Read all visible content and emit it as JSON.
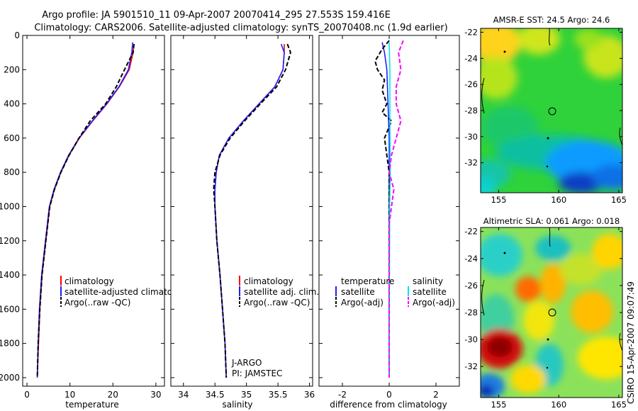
{
  "header": {
    "line1": "Argo profile: JA 5901510_11 09-Apr-2007 20070414_295 27.553S 159.416E",
    "line2": "Climatology: CARS2006. Satellite-adjusted climatology: synTS_20070408.nc (1.9d earlier)"
  },
  "colors": {
    "climatology": "#ff0000",
    "satellite": "#1f1fff",
    "argo": "#000000",
    "satellite_diff_sal": "#00e5ee",
    "argo_diff_sal": "#ff00ff"
  },
  "footer": {
    "credit": "CSIRO 15-Apr-2007 09:07:49",
    "institution": "J-ARGO",
    "pi": "PI: JAMSTEC"
  },
  "chart_data": [
    {
      "type": "line",
      "id": "temperature",
      "xlabel": "temperature",
      "xlim": [
        -1,
        32
      ],
      "ylim": [
        2050,
        0
      ],
      "xticks": [
        0,
        10,
        20,
        30
      ],
      "yticks": [
        0,
        200,
        400,
        600,
        800,
        1000,
        1200,
        1400,
        1600,
        1800,
        2000
      ],
      "legend": [
        "climatology",
        "satellite-adjusted climatology",
        "Argo(..raw -QC)"
      ],
      "series": [
        {
          "name": "climatology",
          "color": "red",
          "style": "solid",
          "points": [
            [
              24.9,
              50
            ],
            [
              24.7,
              100
            ],
            [
              23.8,
              200
            ],
            [
              21.5,
              300
            ],
            [
              18.6,
              400
            ],
            [
              15.3,
              500
            ],
            [
              12.2,
              600
            ],
            [
              9.8,
              700
            ],
            [
              7.9,
              800
            ],
            [
              6.4,
              900
            ],
            [
              5.3,
              1000
            ],
            [
              4.4,
              1200
            ],
            [
              3.5,
              1400
            ],
            [
              3.0,
              1600
            ],
            [
              2.7,
              1800
            ],
            [
              2.4,
              2000
            ]
          ]
        },
        {
          "name": "satellite-adjusted climatology",
          "color": "blue",
          "style": "solid",
          "points": [
            [
              24.6,
              40
            ],
            [
              24.4,
              100
            ],
            [
              23.6,
              200
            ],
            [
              21.4,
              300
            ],
            [
              18.5,
              400
            ],
            [
              15.2,
              500
            ],
            [
              12.1,
              600
            ],
            [
              9.7,
              700
            ],
            [
              7.8,
              800
            ],
            [
              6.3,
              900
            ],
            [
              5.2,
              1000
            ],
            [
              4.3,
              1200
            ],
            [
              3.4,
              1400
            ],
            [
              2.9,
              1600
            ],
            [
              2.6,
              1800
            ],
            [
              2.4,
              2000
            ]
          ]
        },
        {
          "name": "Argo(..raw -QC)",
          "color": "black",
          "style": "dashed",
          "points": [
            [
              24.9,
              50
            ],
            [
              24.7,
              100
            ],
            [
              22.7,
              200
            ],
            [
              20.8,
              300
            ],
            [
              18.3,
              400
            ],
            [
              14.7,
              500
            ],
            [
              12.1,
              600
            ],
            [
              9.8,
              700
            ],
            [
              7.9,
              800
            ],
            [
              6.4,
              900
            ],
            [
              5.3,
              1000
            ],
            [
              4.4,
              1200
            ],
            [
              3.5,
              1400
            ],
            [
              3.0,
              1600
            ],
            [
              2.6,
              1800
            ],
            [
              2.4,
              2000
            ]
          ]
        }
      ]
    },
    {
      "type": "line",
      "id": "salinity",
      "xlabel": "salinity",
      "xlim": [
        33.8,
        36.05
      ],
      "ylim": [
        2050,
        0
      ],
      "xticks": [
        34,
        34.5,
        35,
        35.5,
        36
      ],
      "yticks": [
        0,
        200,
        400,
        600,
        800,
        1000,
        1200,
        1400,
        1600,
        1800,
        2000
      ],
      "legend": [
        "climatology",
        "satellite adj. clim.",
        "Argo(..raw -QC)"
      ],
      "series": [
        {
          "name": "climatology",
          "color": "red",
          "style": "solid",
          "points": [
            [
              35.6,
              50
            ],
            [
              35.6,
              100
            ],
            [
              35.58,
              200
            ],
            [
              35.45,
              300
            ],
            [
              35.2,
              400
            ],
            [
              34.95,
              500
            ],
            [
              34.72,
              600
            ],
            [
              34.57,
              700
            ],
            [
              34.52,
              800
            ],
            [
              34.5,
              900
            ],
            [
              34.5,
              1000
            ],
            [
              34.53,
              1200
            ],
            [
              34.58,
              1400
            ],
            [
              34.62,
              1600
            ],
            [
              34.66,
              1800
            ],
            [
              34.68,
              2000
            ]
          ]
        },
        {
          "name": "satellite adj. clim.",
          "color": "blue",
          "style": "solid",
          "points": [
            [
              35.55,
              50
            ],
            [
              35.6,
              100
            ],
            [
              35.58,
              200
            ],
            [
              35.45,
              300
            ],
            [
              35.2,
              400
            ],
            [
              34.95,
              500
            ],
            [
              34.72,
              600
            ],
            [
              34.57,
              700
            ],
            [
              34.52,
              800
            ],
            [
              34.5,
              900
            ],
            [
              34.5,
              1000
            ],
            [
              34.53,
              1200
            ],
            [
              34.58,
              1400
            ],
            [
              34.62,
              1600
            ],
            [
              34.66,
              1800
            ],
            [
              34.68,
              2000
            ]
          ]
        },
        {
          "name": "Argo(..raw -QC)",
          "color": "black",
          "style": "dashed",
          "points": [
            [
              35.65,
              50
            ],
            [
              35.7,
              100
            ],
            [
              35.62,
              200
            ],
            [
              35.48,
              300
            ],
            [
              35.22,
              400
            ],
            [
              34.97,
              500
            ],
            [
              34.74,
              600
            ],
            [
              34.58,
              700
            ],
            [
              34.5,
              800
            ],
            [
              34.48,
              900
            ],
            [
              34.5,
              1000
            ],
            [
              34.53,
              1200
            ],
            [
              34.58,
              1400
            ],
            [
              34.62,
              1600
            ],
            [
              34.66,
              1800
            ],
            [
              34.68,
              2000
            ]
          ]
        }
      ]
    },
    {
      "type": "line",
      "id": "difference",
      "xlabel": "difference from climatology",
      "xlim": [
        -3,
        3
      ],
      "ylim": [
        2050,
        0
      ],
      "xticks": [
        -2,
        0,
        2
      ],
      "yticks": [
        0,
        200,
        400,
        600,
        800,
        1000,
        1200,
        1400,
        1600,
        1800,
        2000
      ],
      "legend_left_title": "temperature",
      "legend_right_title": "salinity",
      "legend": [
        "satellite",
        "Argo(-adj)",
        "satellite",
        "Argo(-adj)"
      ],
      "series": [
        {
          "name": "temperature satellite",
          "color": "blue",
          "style": "solid",
          "points": [
            [
              -0.3,
              40
            ],
            [
              -0.2,
              100
            ],
            [
              -0.1,
              200
            ],
            [
              -0.05,
              400
            ],
            [
              0,
              600
            ],
            [
              0,
              1000
            ],
            [
              0,
              2000
            ]
          ]
        },
        {
          "name": "temperature Argo(-adj)",
          "color": "black",
          "style": "dashed",
          "points": [
            [
              0,
              30
            ],
            [
              -0.3,
              80
            ],
            [
              -0.6,
              150
            ],
            [
              -0.5,
              200
            ],
            [
              -0.2,
              260
            ],
            [
              -0.3,
              320
            ],
            [
              -0.1,
              400
            ],
            [
              -0.3,
              450
            ],
            [
              0.1,
              500
            ],
            [
              -0.2,
              600
            ],
            [
              -0.1,
              700
            ],
            [
              0,
              800
            ],
            [
              0,
              1000
            ],
            [
              0,
              2000
            ]
          ]
        },
        {
          "name": "salinity satellite",
          "color": "cyan",
          "style": "solid",
          "points": [
            [
              0,
              40
            ],
            [
              0.03,
              200
            ],
            [
              0.03,
              500
            ],
            [
              0.05,
              800
            ],
            [
              0.02,
              1000
            ],
            [
              0,
              2000
            ]
          ]
        },
        {
          "name": "salinity Argo(-adj)",
          "color": "magenta",
          "style": "dashed",
          "points": [
            [
              0.6,
              30
            ],
            [
              0.4,
              100
            ],
            [
              0.5,
              200
            ],
            [
              0.3,
              300
            ],
            [
              0.3,
              400
            ],
            [
              0.5,
              500
            ],
            [
              0.3,
              600
            ],
            [
              0.1,
              700
            ],
            [
              0,
              800
            ],
            [
              0.2,
              900
            ],
            [
              0,
              1100
            ],
            [
              0,
              2000
            ]
          ]
        }
      ]
    },
    {
      "type": "heatmap",
      "id": "sst-map",
      "title": "AMSR-E SST: 24.5 Argo: 24.6",
      "xlim": [
        153.5,
        165.3
      ],
      "ylim": [
        -34.3,
        -21.7
      ],
      "xticks": [
        155,
        160,
        165
      ],
      "yticks": [
        -22,
        -24,
        -26,
        -28,
        -30,
        -32
      ],
      "profile_marker": [
        159.4,
        -27.55
      ]
    },
    {
      "type": "heatmap",
      "id": "sla-map",
      "title": "Altimetric SLA: 0.061 Argo: 0.018",
      "xlim": [
        153.5,
        165.3
      ],
      "ylim": [
        -34.3,
        -21.7
      ],
      "xticks": [
        155,
        160,
        165
      ],
      "yticks": [
        -22,
        -24,
        -26,
        -28,
        -30,
        -32
      ],
      "profile_marker": [
        159.4,
        -27.55
      ]
    }
  ]
}
